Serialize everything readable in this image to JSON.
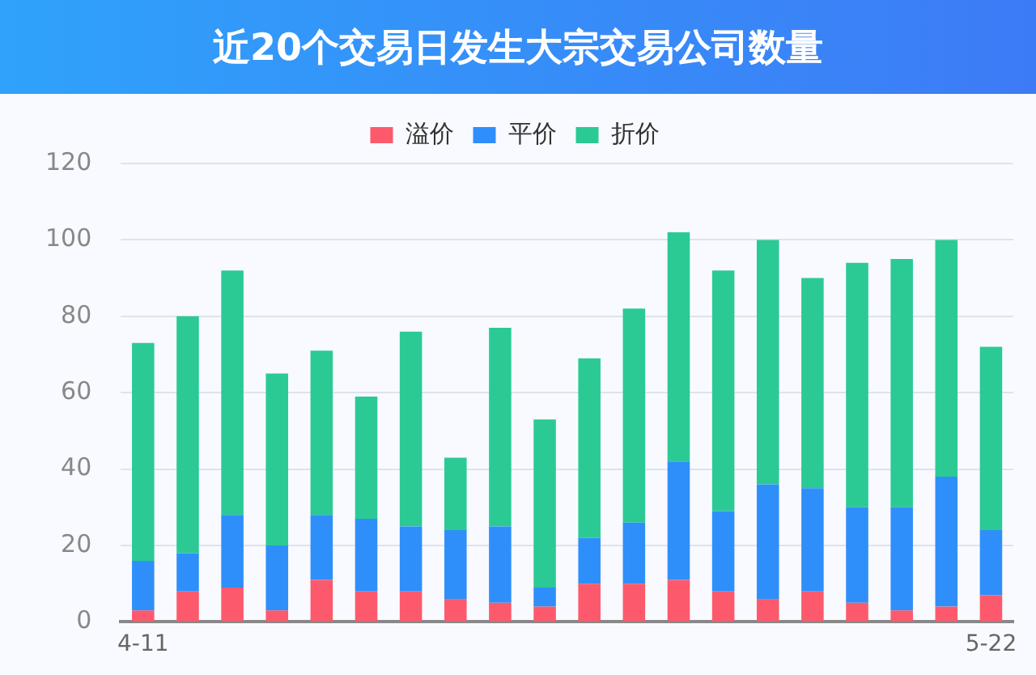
{
  "chart_data": {
    "type": "bar",
    "title": "近20个交易日发生大宗交易公司数量",
    "stacked": true,
    "legend": "top",
    "grid": "y",
    "categories": [
      "4-11",
      null,
      null,
      null,
      null,
      null,
      null,
      null,
      null,
      null,
      null,
      null,
      null,
      null,
      null,
      null,
      null,
      null,
      null,
      "5-22"
    ],
    "series": [
      {
        "name": "溢价",
        "color": "#fc5a6c",
        "values": [
          3,
          8,
          9,
          3,
          11,
          8,
          8,
          6,
          5,
          4,
          10,
          10,
          11,
          8,
          6,
          8,
          5,
          3,
          4,
          7
        ]
      },
      {
        "name": "平价",
        "color": "#2f8ffa",
        "values": [
          13,
          10,
          19,
          17,
          17,
          19,
          17,
          18,
          20,
          5,
          12,
          16,
          31,
          21,
          30,
          27,
          25,
          27,
          34,
          17
        ]
      },
      {
        "name": "折价",
        "color": "#2bca95",
        "values": [
          57,
          62,
          64,
          45,
          43,
          32,
          51,
          19,
          52,
          44,
          47,
          56,
          60,
          63,
          64,
          55,
          64,
          65,
          62,
          48
        ]
      }
    ],
    "ylim": [
      0,
      120
    ],
    "yticks": [
      0,
      20,
      40,
      60,
      80,
      100,
      120
    ]
  }
}
